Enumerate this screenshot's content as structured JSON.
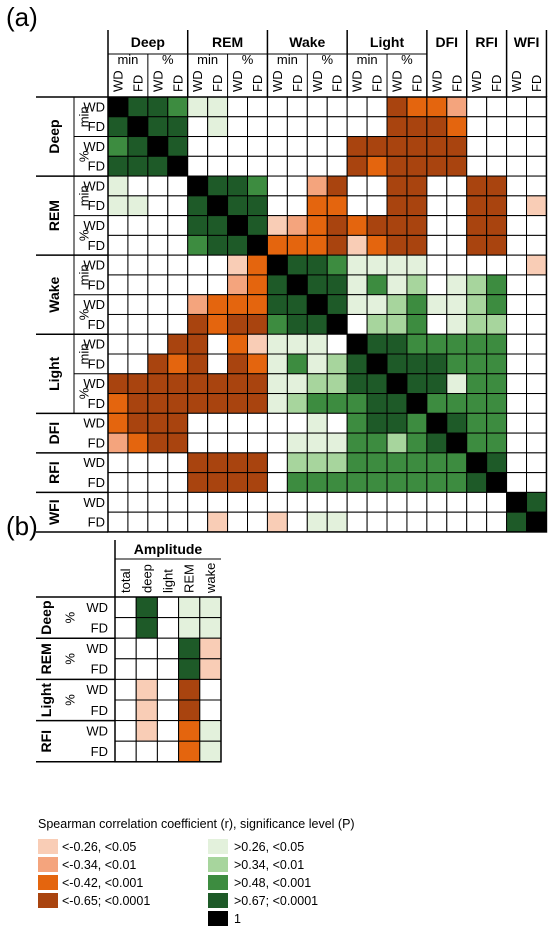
{
  "panel_a": {
    "label": "(a)",
    "groups": [
      {
        "name": "Deep",
        "subs": [
          "min",
          "%"
        ]
      },
      {
        "name": "REM",
        "subs": [
          "min",
          "%"
        ]
      },
      {
        "name": "Wake",
        "subs": [
          "min",
          "%"
        ]
      },
      {
        "name": "Light",
        "subs": [
          "min",
          "%"
        ]
      },
      {
        "name": "DFI",
        "subs": [
          ""
        ]
      },
      {
        "name": "RFI",
        "subs": [
          ""
        ]
      },
      {
        "name": "WFI",
        "subs": [
          ""
        ]
      }
    ],
    "conditions": [
      "WD",
      "FD"
    ]
  },
  "panel_b": {
    "label": "(b)",
    "column_group": "Amplitude",
    "columns": [
      "total",
      "deep",
      "light",
      "REM",
      "wake"
    ],
    "row_groups": [
      {
        "name": "Deep",
        "sub": "%"
      },
      {
        "name": "REM",
        "sub": "%"
      },
      {
        "name": "Light",
        "sub": "%"
      },
      {
        "name": "RFI",
        "sub": ""
      }
    ],
    "conditions": [
      "WD",
      "FD"
    ]
  },
  "legend": {
    "title": "Spearman correlation coefficient (r), significance level (P)",
    "negative": [
      "<-0.26, <0.05",
      "<-0.34, <0.01",
      "<-0.42, <0.001",
      "<-0.65; <0.0001"
    ],
    "positive": [
      ">0.26, <0.05",
      ">0.34, <0.01",
      ">0.48, <0.001",
      ">0.67; <0.0001",
      "1"
    ]
  },
  "colors": {
    "n1": "#F9CDB6",
    "n2": "#F4A47D",
    "n3": "#E4650E",
    "n4": "#A9440F",
    "p1": "#E3F1DC",
    "p2": "#A7D59D",
    "p3": "#3D8C40",
    "p4": "#1E5A28",
    "one": "#000000"
  },
  "chart_data": [
    {
      "type": "heatmap",
      "title": "",
      "rows": [
        "Deep min WD",
        "Deep min FD",
        "Deep % WD",
        "Deep % FD",
        "REM min WD",
        "REM min FD",
        "REM % WD",
        "REM % FD",
        "Wake min WD",
        "Wake min FD",
        "Wake % WD",
        "Wake % FD",
        "Light min WD",
        "Light min FD",
        "Light % WD",
        "Light % FD",
        "DFI WD",
        "DFI FD",
        "RFI WD",
        "RFI FD",
        "WFI WD",
        "WFI FD"
      ],
      "columns": [
        "Deep min WD",
        "Deep min FD",
        "Deep % WD",
        "Deep % FD",
        "REM min WD",
        "REM min FD",
        "REM % WD",
        "REM % FD",
        "Wake min WD",
        "Wake min FD",
        "Wake % WD",
        "Wake % FD",
        "Light min WD",
        "Light min FD",
        "Light % WD",
        "Light % FD",
        "DFI WD",
        "DFI FD",
        "RFI WD",
        "RFI FD",
        "WFI WD",
        "WFI FD"
      ],
      "categories": {
        "n1": "<-0.26, <0.05",
        "n2": "<-0.34, <0.01",
        "n3": "<-0.42, <0.001",
        "n4": "<-0.65; <0.0001",
        "p1": ">0.26, <0.05",
        "p2": ">0.34, <0.01",
        "p3": ">0.48, <0.001",
        "p4": ">0.67; <0.0001",
        "one": "1",
        "": "not significant"
      },
      "matrix": [
        [
          "one",
          "p4",
          "p4",
          "p3",
          "p1",
          "p1",
          "",
          "",
          "",
          "",
          "",
          "",
          "",
          "",
          "n4",
          "n3",
          "n3",
          "n2",
          "",
          "",
          "",
          ""
        ],
        [
          "p4",
          "one",
          "p4",
          "p4",
          "",
          "p1",
          "",
          "",
          "",
          "",
          "",
          "",
          "",
          "",
          "n4",
          "n4",
          "n4",
          "n3",
          "",
          "",
          "",
          ""
        ],
        [
          "p3",
          "p4",
          "one",
          "p4",
          "",
          "",
          "",
          "",
          "",
          "",
          "",
          "",
          "n4",
          "n4",
          "n4",
          "n4",
          "n4",
          "n4",
          "",
          "",
          "",
          ""
        ],
        [
          "p4",
          "p4",
          "p4",
          "one",
          "",
          "",
          "",
          "",
          "",
          "",
          "",
          "",
          "n4",
          "n3",
          "n4",
          "n4",
          "n4",
          "n4",
          "",
          "",
          "",
          ""
        ],
        [
          "p1",
          "",
          "",
          "",
          "one",
          "p4",
          "p4",
          "p3",
          "",
          "",
          "n2",
          "n4",
          "",
          "",
          "n4",
          "n4",
          "",
          "",
          "n4",
          "n4",
          "",
          ""
        ],
        [
          "p1",
          "p1",
          "",
          "",
          "p4",
          "one",
          "p4",
          "p4",
          "",
          "",
          "n3",
          "n3",
          "",
          "",
          "n4",
          "n4",
          "",
          "",
          "n4",
          "n4",
          "",
          "n1"
        ],
        [
          "",
          "",
          "",
          "",
          "p4",
          "p4",
          "one",
          "p4",
          "n1",
          "n2",
          "n3",
          "n4",
          "n3",
          "n4",
          "n4",
          "n4",
          "",
          "",
          "n4",
          "n4",
          "",
          ""
        ],
        [
          "",
          "",
          "",
          "",
          "p3",
          "p4",
          "p4",
          "one",
          "n3",
          "n3",
          "n3",
          "n4",
          "n1",
          "n3",
          "n4",
          "n4",
          "",
          "",
          "n4",
          "n4",
          "",
          ""
        ],
        [
          "",
          "",
          "",
          "",
          "",
          "",
          "n1",
          "n3",
          "one",
          "p4",
          "p4",
          "p3",
          "p1",
          "p1",
          "p1",
          "p1",
          "",
          "",
          "",
          "",
          "",
          "n1"
        ],
        [
          "",
          "",
          "",
          "",
          "",
          "",
          "n2",
          "n3",
          "p4",
          "one",
          "p4",
          "p4",
          "p1",
          "p3",
          "p1",
          "p2",
          "",
          "p1",
          "p2",
          "p3",
          "",
          ""
        ],
        [
          "",
          "",
          "",
          "",
          "n2",
          "n3",
          "n3",
          "n3",
          "p4",
          "p4",
          "one",
          "p4",
          "p1",
          "p1",
          "p2",
          "p3",
          "p1",
          "p1",
          "p2",
          "p3",
          "",
          ""
        ],
        [
          "",
          "",
          "",
          "",
          "n4",
          "n3",
          "n4",
          "n4",
          "p3",
          "p4",
          "p4",
          "one",
          "",
          "p2",
          "p2",
          "p3",
          "",
          "p1",
          "p2",
          "p2",
          "",
          ""
        ],
        [
          "",
          "",
          "",
          "n4",
          "n4",
          "",
          "n3",
          "n1",
          "p1",
          "p1",
          "p1",
          "",
          "one",
          "p4",
          "p4",
          "p3",
          "p3",
          "p3",
          "p3",
          "p3",
          "",
          ""
        ],
        [
          "",
          "",
          "n4",
          "n3",
          "n4",
          "",
          "n4",
          "n3",
          "p1",
          "p3",
          "p1",
          "p2",
          "p4",
          "one",
          "p4",
          "p4",
          "p4",
          "p3",
          "p3",
          "p3",
          "",
          ""
        ],
        [
          "n4",
          "n4",
          "n4",
          "n4",
          "n4",
          "n4",
          "n4",
          "n4",
          "p1",
          "p1",
          "p2",
          "p2",
          "p4",
          "p4",
          "one",
          "p4",
          "p4",
          "p1",
          "p3",
          "p3",
          "",
          ""
        ],
        [
          "n3",
          "n4",
          "n4",
          "n4",
          "n4",
          "n4",
          "n4",
          "n4",
          "p1",
          "p2",
          "p3",
          "p3",
          "p3",
          "p4",
          "p4",
          "one",
          "p3",
          "p3",
          "p3",
          "p3",
          "",
          ""
        ],
        [
          "n3",
          "n4",
          "n4",
          "n4",
          "",
          "",
          "",
          "",
          "",
          "",
          "p1",
          "",
          "p3",
          "p4",
          "p4",
          "p3",
          "one",
          "p4",
          "p3",
          "p3",
          "",
          ""
        ],
        [
          "n2",
          "n3",
          "n4",
          "n4",
          "",
          "",
          "",
          "",
          "",
          "p1",
          "p1",
          "p1",
          "p3",
          "p3",
          "p2",
          "p3",
          "p4",
          "one",
          "p3",
          "p3",
          "",
          ""
        ],
        [
          "",
          "",
          "",
          "",
          "n4",
          "n4",
          "n4",
          "n4",
          "",
          "p2",
          "p2",
          "p2",
          "p3",
          "p3",
          "p3",
          "p3",
          "p3",
          "p3",
          "one",
          "p4",
          "",
          ""
        ],
        [
          "",
          "",
          "",
          "",
          "n4",
          "n4",
          "n4",
          "n4",
          "",
          "p3",
          "p3",
          "p3",
          "p3",
          "p3",
          "p3",
          "p3",
          "p3",
          "p3",
          "p4",
          "one",
          "",
          ""
        ],
        [
          "",
          "",
          "",
          "",
          "",
          "",
          "",
          "",
          "",
          "",
          "",
          "",
          "",
          "",
          "",
          "",
          "",
          "",
          "",
          "",
          "one",
          "p4"
        ],
        [
          "",
          "",
          "",
          "",
          "",
          "n1",
          "",
          "",
          "n1",
          "",
          "p1",
          "p1",
          "",
          "",
          "",
          "",
          "",
          "",
          "",
          "",
          "p4",
          "one"
        ]
      ]
    },
    {
      "type": "heatmap",
      "title": "",
      "rows": [
        "Deep % WD",
        "Deep % FD",
        "REM % WD",
        "REM % FD",
        "Light % WD",
        "Light % FD",
        "RFI WD",
        "RFI FD"
      ],
      "columns": [
        "total",
        "deep",
        "light",
        "REM",
        "wake"
      ],
      "matrix": [
        [
          "",
          "p4",
          "",
          "p1",
          "p1"
        ],
        [
          "",
          "p4",
          "",
          "p1",
          "p1"
        ],
        [
          "",
          "",
          "",
          "p4",
          "n1"
        ],
        [
          "",
          "",
          "",
          "p4",
          "n1"
        ],
        [
          "",
          "n1",
          "",
          "n4",
          ""
        ],
        [
          "",
          "n1",
          "",
          "n4",
          ""
        ],
        [
          "",
          "n1",
          "",
          "n3",
          "p1"
        ],
        [
          "",
          "",
          "",
          "n3",
          "p1"
        ]
      ]
    }
  ]
}
